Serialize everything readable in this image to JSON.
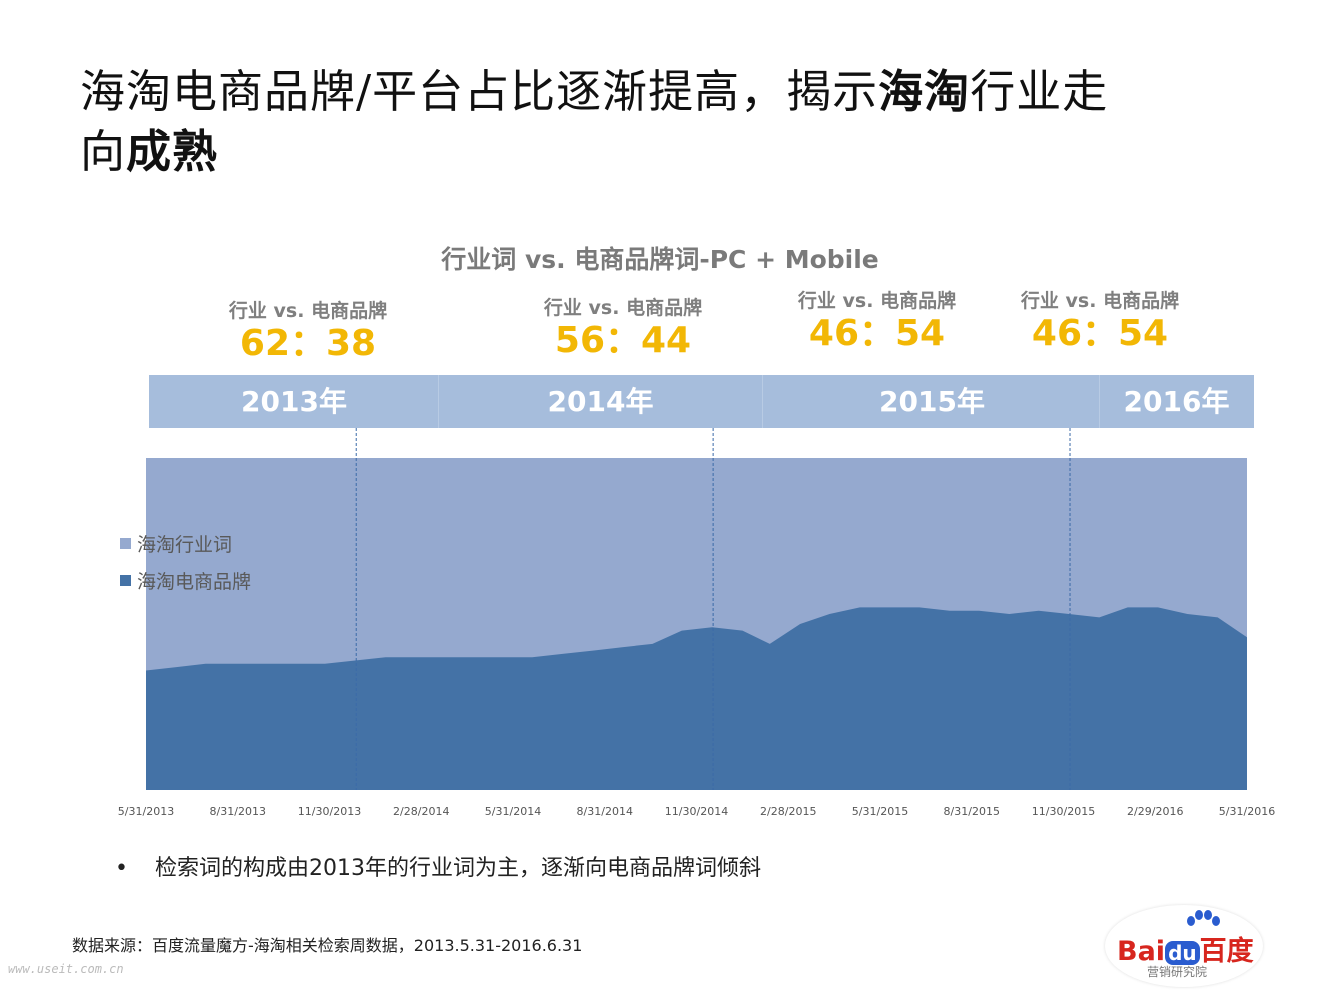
{
  "title_line1": "海淘电商品牌/平台占比逐渐提高，揭示",
  "title_bold1": "海淘",
  "title_line1_end": "行业走",
  "title_line2": "向",
  "title_bold2": "成熟",
  "chart_data": {
    "type": "area",
    "title": "行业词 vs. 电商品牌词-PC + Mobile",
    "stacking": "percent",
    "ylim": [
      0,
      1
    ],
    "x_ticks": [
      "5/31/2013",
      "8/31/2013",
      "11/30/2013",
      "2/28/2014",
      "5/31/2014",
      "8/31/2014",
      "11/30/2014",
      "2/28/2015",
      "5/31/2015",
      "8/31/2015",
      "11/30/2015",
      "2/29/2016",
      "5/31/2016"
    ],
    "series": [
      {
        "name": "海淘行业词",
        "color": "#95a9cf"
      },
      {
        "name": "海淘电商品牌",
        "color": "#4472a6",
        "x": [
          "2013-05-31",
          "2013-06-30",
          "2013-07-31",
          "2013-08-31",
          "2013-09-30",
          "2013-10-31",
          "2013-11-30",
          "2013-12-31",
          "2014-01-31",
          "2014-02-28",
          "2014-03-31",
          "2014-04-30",
          "2014-05-31",
          "2014-06-30",
          "2014-07-31",
          "2014-08-31",
          "2014-09-30",
          "2014-10-31",
          "2014-11-30",
          "2014-12-31",
          "2015-01-31",
          "2015-02-28",
          "2015-03-31",
          "2015-04-30",
          "2015-05-31",
          "2015-06-30",
          "2015-07-31",
          "2015-08-31",
          "2015-09-30",
          "2015-10-31",
          "2015-11-30",
          "2015-12-31",
          "2016-01-31",
          "2016-02-29",
          "2016-03-31",
          "2016-04-30",
          "2016-05-31",
          "2016-06-30"
        ],
        "values": [
          0.36,
          0.37,
          0.38,
          0.38,
          0.38,
          0.38,
          0.38,
          0.39,
          0.4,
          0.4,
          0.4,
          0.4,
          0.4,
          0.4,
          0.41,
          0.42,
          0.43,
          0.44,
          0.48,
          0.49,
          0.48,
          0.44,
          0.5,
          0.53,
          0.55,
          0.55,
          0.55,
          0.54,
          0.54,
          0.53,
          0.54,
          0.53,
          0.52,
          0.55,
          0.55,
          0.53,
          0.52,
          0.46
        ]
      }
    ],
    "legend_position": "left",
    "grid": false,
    "year_bands": [
      {
        "label": "2013年",
        "ratio_label": "行业 vs. 电商品牌",
        "ratio": "62：38"
      },
      {
        "label": "2014年",
        "ratio_label": "行业 vs. 电商品牌",
        "ratio": "56：44"
      },
      {
        "label": "2015年",
        "ratio_label": "行业 vs. 电商品牌",
        "ratio": "46：54"
      },
      {
        "label": "2016年",
        "ratio_label": "行业 vs. 电商品牌",
        "ratio": "46：54"
      }
    ]
  },
  "bullet": "检索词的构成由2013年的行业词为主，逐渐向电商品牌词倾斜",
  "bullet_marker": "•",
  "source": "数据来源：百度流量魔方-海淘相关检索周数据，2013.5.31-2016.6.31",
  "watermark": "www.useit.com.cn",
  "logo": {
    "brand_a": "Bai",
    "brand_b": "du",
    "brand_c": "百度",
    "sub": "营销研究院"
  },
  "colors": {
    "industry": "#95a9cf",
    "brand": "#4472a6",
    "ratio": "#f2b705",
    "band": "#a6bddc"
  }
}
